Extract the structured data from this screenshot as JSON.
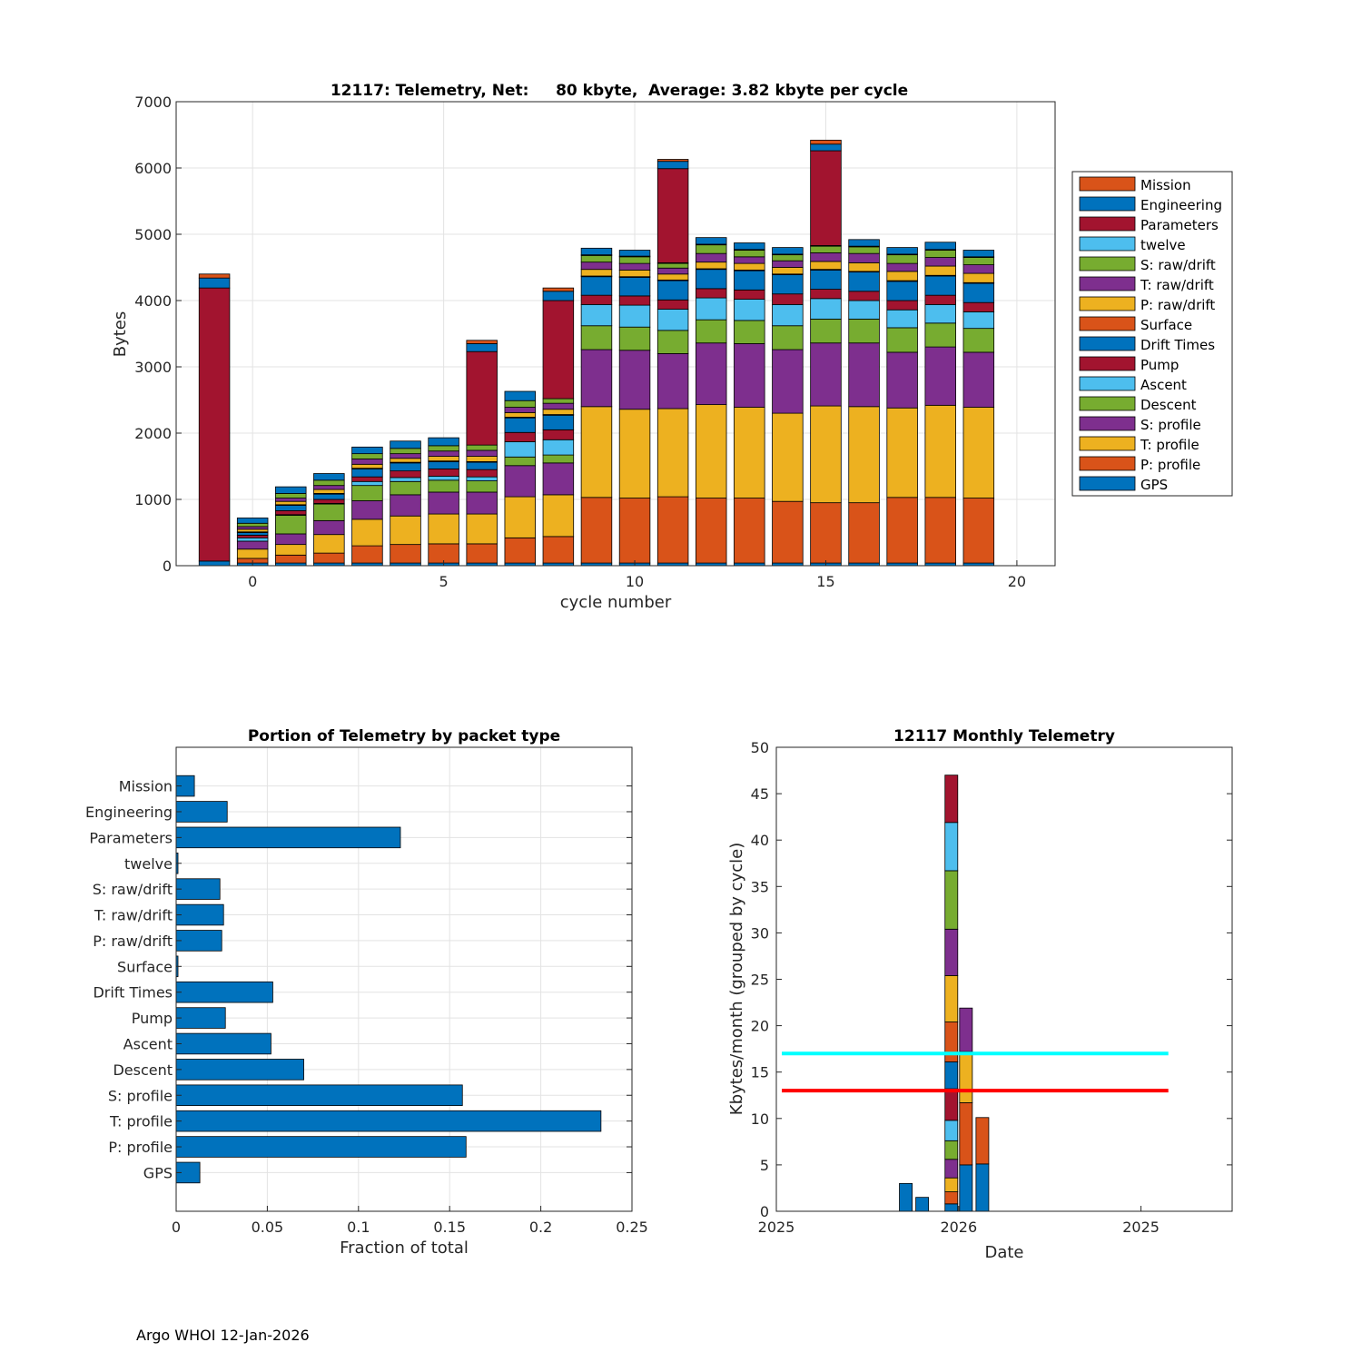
{
  "footer": "Argo WHOI 12-Jan-2026",
  "chart_data": [
    {
      "type": "bar",
      "stacked": true,
      "title": "12117: Telemetry, Net:     80 kbyte,  Average: 3.82 kbyte per cycle",
      "xlabel": "cycle number",
      "ylabel": "Bytes",
      "xlim": [
        -2,
        21
      ],
      "ylim": [
        0,
        7000
      ],
      "xticks": [
        0,
        5,
        10,
        15,
        20
      ],
      "yticks": [
        0,
        1000,
        2000,
        3000,
        4000,
        5000,
        6000,
        7000
      ],
      "legend_position": "outside-right",
      "categories": [
        -1,
        0,
        1,
        2,
        3,
        4,
        5,
        6,
        7,
        8,
        9,
        10,
        11,
        12,
        13,
        14,
        15,
        16,
        17,
        18,
        19
      ],
      "series": [
        {
          "name": "GPS",
          "color": "#0072BD",
          "values": [
            70,
            40,
            40,
            40,
            40,
            40,
            40,
            40,
            40,
            40,
            40,
            40,
            40,
            40,
            40,
            40,
            40,
            40,
            40,
            40,
            40
          ]
        },
        {
          "name": "P: profile",
          "color": "#D95319",
          "values": [
            0,
            70,
            120,
            150,
            260,
            280,
            290,
            290,
            380,
            400,
            990,
            980,
            1000,
            980,
            980,
            930,
            910,
            910,
            990,
            990,
            980
          ]
        },
        {
          "name": "T: profile",
          "color": "#EDB120",
          "values": [
            0,
            140,
            160,
            280,
            400,
            430,
            450,
            450,
            620,
            630,
            1370,
            1340,
            1330,
            1410,
            1370,
            1330,
            1460,
            1450,
            1350,
            1390,
            1370
          ]
        },
        {
          "name": "S: profile",
          "color": "#7E2F8E",
          "values": [
            0,
            120,
            160,
            210,
            280,
            320,
            330,
            330,
            470,
            480,
            860,
            890,
            830,
            930,
            960,
            960,
            950,
            960,
            840,
            880,
            830
          ]
        },
        {
          "name": "Descent",
          "color": "#77AC30",
          "values": [
            0,
            0,
            280,
            250,
            230,
            200,
            180,
            170,
            130,
            120,
            360,
            350,
            350,
            350,
            350,
            360,
            360,
            360,
            370,
            360,
            360
          ]
        },
        {
          "name": "Ascent",
          "color": "#4DBEEE",
          "values": [
            0,
            50,
            10,
            10,
            60,
            60,
            60,
            60,
            230,
            230,
            320,
            330,
            320,
            330,
            320,
            320,
            310,
            280,
            270,
            280,
            250
          ]
        },
        {
          "name": "Pump",
          "color": "#A2142F",
          "values": [
            0,
            40,
            60,
            60,
            70,
            100,
            110,
            110,
            140,
            150,
            140,
            140,
            140,
            140,
            140,
            160,
            140,
            140,
            140,
            140,
            140
          ]
        },
        {
          "name": "Drift Times",
          "color": "#0072BD",
          "values": [
            0,
            40,
            80,
            80,
            120,
            120,
            110,
            110,
            220,
            220,
            280,
            280,
            290,
            290,
            290,
            290,
            290,
            290,
            290,
            290,
            290
          ]
        },
        {
          "name": "Surface",
          "color": "#D95319",
          "values": [
            0,
            10,
            10,
            10,
            10,
            10,
            10,
            10,
            10,
            10,
            10,
            10,
            10,
            10,
            10,
            10,
            10,
            10,
            10,
            10,
            10
          ]
        },
        {
          "name": "P: raw/drift",
          "color": "#EDB120",
          "values": [
            0,
            40,
            50,
            60,
            60,
            60,
            70,
            80,
            70,
            80,
            100,
            100,
            90,
            100,
            100,
            100,
            120,
            130,
            140,
            140,
            140
          ]
        },
        {
          "name": "T: raw/drift",
          "color": "#7E2F8E",
          "values": [
            0,
            40,
            50,
            60,
            80,
            70,
            80,
            90,
            80,
            90,
            110,
            100,
            90,
            130,
            100,
            100,
            130,
            140,
            120,
            130,
            130
          ]
        },
        {
          "name": "S: raw/drift",
          "color": "#77AC30",
          "values": [
            0,
            50,
            70,
            80,
            80,
            80,
            80,
            80,
            100,
            70,
            100,
            100,
            70,
            130,
            100,
            90,
            100,
            100,
            130,
            110,
            110
          ]
        },
        {
          "name": "twelve",
          "color": "#4DBEEE",
          "values": [
            0,
            0,
            0,
            0,
            0,
            0,
            0,
            0,
            0,
            0,
            10,
            10,
            10,
            10,
            10,
            10,
            10,
            10,
            10,
            10,
            10
          ]
        },
        {
          "name": "Parameters",
          "color": "#A2142F",
          "values": [
            4120,
            0,
            0,
            0,
            0,
            0,
            0,
            1410,
            0,
            1480,
            0,
            0,
            1420,
            0,
            0,
            0,
            1430,
            0,
            0,
            0,
            0
          ]
        },
        {
          "name": "Engineering",
          "color": "#0072BD",
          "values": [
            150,
            80,
            100,
            100,
            100,
            110,
            120,
            120,
            140,
            140,
            100,
            90,
            110,
            100,
            100,
            100,
            100,
            100,
            100,
            110,
            100
          ]
        },
        {
          "name": "Mission",
          "color": "#D95319",
          "values": [
            60,
            0,
            0,
            0,
            0,
            0,
            0,
            50,
            0,
            50,
            0,
            0,
            30,
            0,
            0,
            0,
            60,
            0,
            0,
            0,
            0
          ]
        }
      ]
    },
    {
      "type": "barh",
      "title": "Portion of Telemetry by packet type",
      "xlabel": "Fraction of total",
      "xlim": [
        0,
        0.25
      ],
      "xticks": [
        0,
        0.05,
        0.1,
        0.15,
        0.2,
        0.25
      ],
      "xtick_labels": [
        "0",
        "0.05",
        "0.1",
        "0.15",
        "0.2",
        "0.25"
      ],
      "color": "#0072BD",
      "categories": [
        "GPS",
        "P: profile",
        "T: profile",
        "S: profile",
        "Descent",
        "Ascent",
        "Pump",
        "Drift Times",
        "Surface",
        "P: raw/drift",
        "T: raw/drift",
        "S: raw/drift",
        "twelve",
        "Parameters",
        "Engineering",
        "Mission"
      ],
      "values": [
        0.013,
        0.159,
        0.233,
        0.157,
        0.07,
        0.052,
        0.027,
        0.053,
        0.001,
        0.025,
        0.026,
        0.024,
        0.001,
        0.123,
        0.028,
        0.01
      ]
    },
    {
      "type": "bar",
      "stacked": true,
      "title": "12117 Monthly Telemetry",
      "xlabel": "Date",
      "ylabel": "Kbytes/month (grouped by cycle)",
      "ylim": [
        0,
        50
      ],
      "yticks": [
        0,
        5,
        10,
        15,
        20,
        25,
        30,
        35,
        40,
        45,
        50
      ],
      "xticks": [
        0,
        10,
        20
      ],
      "xtick_labels": [
        "2025",
        "2026",
        "2025"
      ],
      "xlim": [
        0,
        25
      ],
      "reference_lines": [
        {
          "value": 17,
          "color": "#00FFFF",
          "x_from": 0.3,
          "x_to": 21.5
        },
        {
          "value": 13,
          "color": "#FF0000",
          "x_from": 0.3,
          "x_to": 21.5
        }
      ],
      "bars": [
        {
          "x": 7.1,
          "segments": [
            {
              "value": 3.0,
              "color": "#0072BD"
            }
          ]
        },
        {
          "x": 8.0,
          "segments": [
            {
              "value": 1.5,
              "color": "#0072BD"
            }
          ]
        },
        {
          "x": 9.6,
          "segments": [
            {
              "value": 0.8,
              "color": "#0072BD"
            },
            {
              "value": 1.3,
              "color": "#D95319"
            },
            {
              "value": 1.5,
              "color": "#EDB120"
            },
            {
              "value": 2.0,
              "color": "#7E2F8E"
            },
            {
              "value": 2.0,
              "color": "#77AC30"
            },
            {
              "value": 2.2,
              "color": "#4DBEEE"
            },
            {
              "value": 3.4,
              "color": "#A2142F"
            },
            {
              "value": 2.9,
              "color": "#0072BD"
            },
            {
              "value": 4.3,
              "color": "#D95319"
            },
            {
              "value": 5.0,
              "color": "#EDB120"
            },
            {
              "value": 5.0,
              "color": "#7E2F8E"
            },
            {
              "value": 6.3,
              "color": "#77AC30"
            },
            {
              "value": 5.2,
              "color": "#4DBEEE"
            },
            {
              "value": 5.1,
              "color": "#A2142F"
            }
          ]
        },
        {
          "x": 10.4,
          "segments": [
            {
              "value": 5.0,
              "color": "#0072BD"
            },
            {
              "value": 6.7,
              "color": "#D95319"
            },
            {
              "value": 5.5,
              "color": "#EDB120"
            },
            {
              "value": 4.7,
              "color": "#7E2F8E"
            }
          ]
        },
        {
          "x": 11.3,
          "segments": [
            {
              "value": 5.1,
              "color": "#0072BD"
            },
            {
              "value": 5.0,
              "color": "#D95319"
            }
          ]
        }
      ]
    }
  ]
}
